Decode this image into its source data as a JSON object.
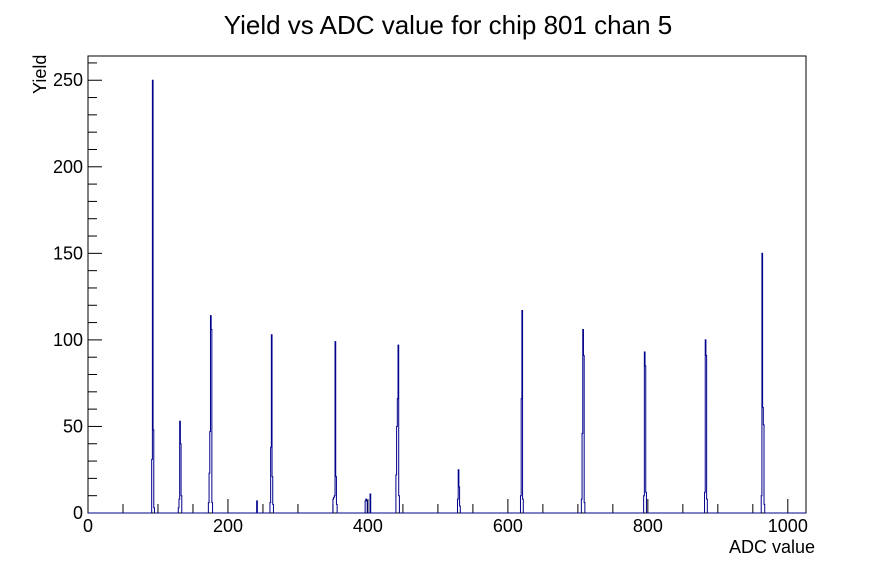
{
  "chart_data": {
    "type": "bar",
    "subtype": "step-histogram",
    "title": "Yield vs ADC value for chip 801 chan 5",
    "xlabel": "ADC value",
    "ylabel": "Yield",
    "xlim": [
      0,
      1026
    ],
    "ylim": [
      0,
      264
    ],
    "x_major_ticks": [
      0,
      200,
      400,
      600,
      800,
      1000
    ],
    "x_minor_step": 50,
    "y_major_ticks": [
      0,
      50,
      100,
      150,
      200,
      250
    ],
    "y_minor_step": 10,
    "grid": false,
    "legend": "none",
    "bin_width": 1,
    "bins": [
      [
        91,
        31
      ],
      [
        92,
        250
      ],
      [
        93,
        48
      ],
      [
        94,
        3
      ],
      [
        129,
        3
      ],
      [
        130,
        8
      ],
      [
        131,
        53
      ],
      [
        132,
        40
      ],
      [
        133,
        10
      ],
      [
        172,
        6
      ],
      [
        173,
        23
      ],
      [
        174,
        47
      ],
      [
        175,
        114
      ],
      [
        176,
        106
      ],
      [
        177,
        6
      ],
      [
        241,
        7
      ],
      [
        260,
        6
      ],
      [
        261,
        38
      ],
      [
        262,
        103
      ],
      [
        263,
        21
      ],
      [
        264,
        5
      ],
      [
        350,
        8
      ],
      [
        351,
        9
      ],
      [
        352,
        10
      ],
      [
        353,
        99
      ],
      [
        354,
        21
      ],
      [
        355,
        5
      ],
      [
        396,
        7
      ],
      [
        397,
        8
      ],
      [
        398,
        7
      ],
      [
        403,
        11
      ],
      [
        440,
        22
      ],
      [
        441,
        50
      ],
      [
        442,
        66
      ],
      [
        443,
        97
      ],
      [
        444,
        10
      ],
      [
        528,
        8
      ],
      [
        529,
        25
      ],
      [
        530,
        15
      ],
      [
        531,
        4
      ],
      [
        618,
        10
      ],
      [
        619,
        66
      ],
      [
        620,
        117
      ],
      [
        621,
        8
      ],
      [
        705,
        8
      ],
      [
        706,
        46
      ],
      [
        707,
        106
      ],
      [
        708,
        91
      ],
      [
        709,
        6
      ],
      [
        794,
        10
      ],
      [
        795,
        93
      ],
      [
        796,
        85
      ],
      [
        797,
        12
      ],
      [
        881,
        12
      ],
      [
        882,
        100
      ],
      [
        883,
        91
      ],
      [
        884,
        8
      ],
      [
        962,
        10
      ],
      [
        963,
        150
      ],
      [
        964,
        61
      ],
      [
        965,
        51
      ],
      [
        966,
        5
      ]
    ],
    "colors": {
      "line": "#00008b",
      "axis": "#000000",
      "background": "#ffffff",
      "text": "#000000"
    }
  }
}
